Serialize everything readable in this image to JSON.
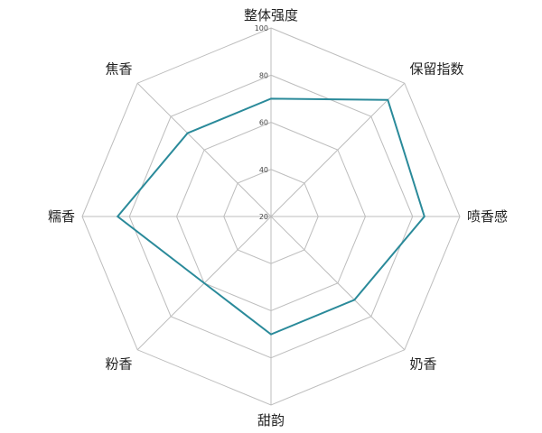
{
  "chart_data": {
    "type": "radar",
    "categories": [
      "整体强度",
      "保留指数",
      "喷香感",
      "奶香",
      "甜韵",
      "粉香",
      "糯香",
      "焦香"
    ],
    "values": [
      70,
      90,
      85,
      70,
      70,
      60,
      85,
      70
    ],
    "rlim": [
      20,
      100
    ],
    "ticks": [
      "20",
      "40",
      "60",
      "80",
      "100"
    ],
    "grid": true,
    "line_color": "#2a8a9a",
    "grid_color": "#bdbdbd"
  }
}
